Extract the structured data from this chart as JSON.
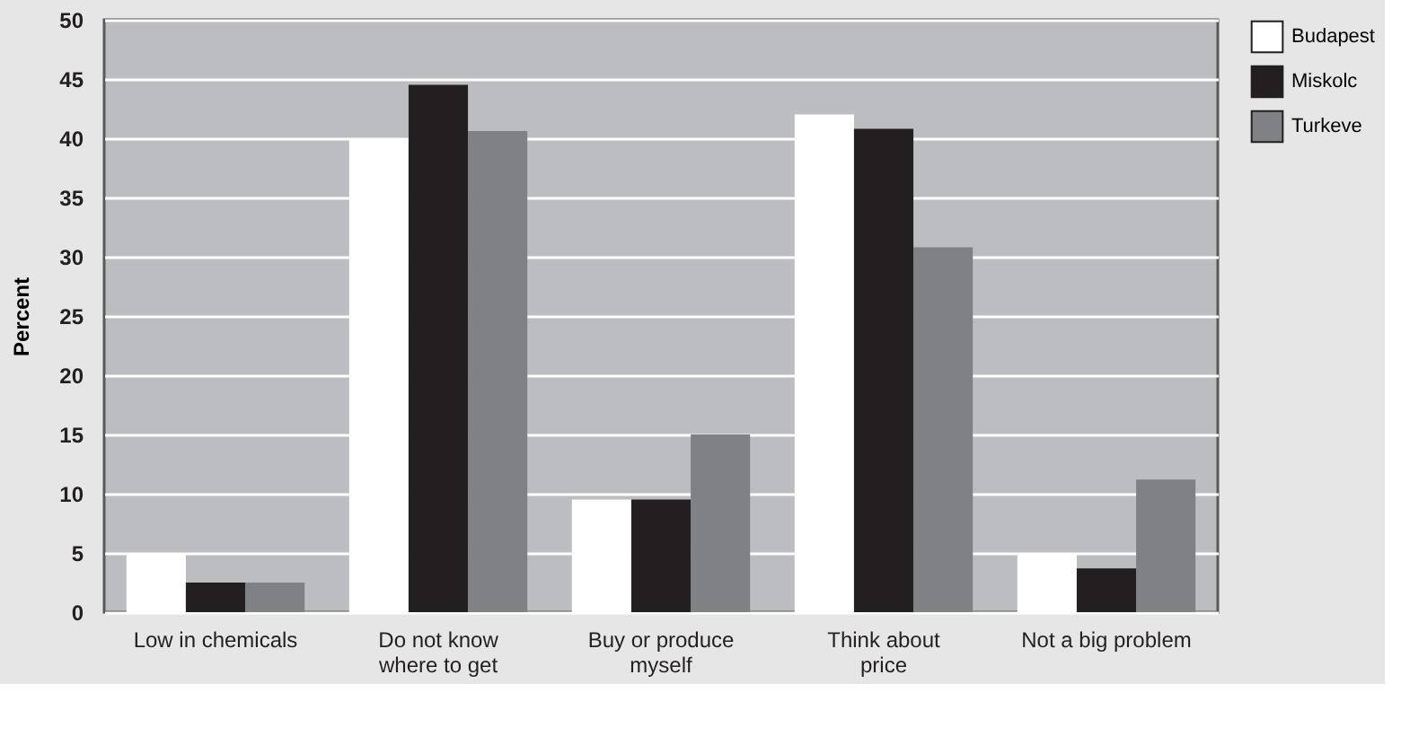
{
  "chart_data": {
    "type": "bar",
    "ylabel": "Percent",
    "categories": [
      "Low in chemicals",
      "Do not know\nwhere to get",
      "Buy or produce\nmyself",
      "Think about\nprice",
      "Not a big problem"
    ],
    "series": [
      {
        "name": "Budapest",
        "color": "#ffffff",
        "values": [
          5,
          40,
          9.5,
          42,
          5
        ]
      },
      {
        "name": "Miskolc",
        "color": "#231f20",
        "values": [
          2.5,
          44.5,
          9.5,
          40.8,
          3.7
        ]
      },
      {
        "name": "Turkeve",
        "color": "#808184",
        "values": [
          2.5,
          40.6,
          15,
          30.8,
          11.2
        ]
      }
    ],
    "ylim": [
      0,
      50
    ],
    "yticks": [
      0,
      5,
      10,
      15,
      20,
      25,
      30,
      35,
      40,
      45,
      50
    ],
    "grid": "y",
    "legend": "top right"
  }
}
